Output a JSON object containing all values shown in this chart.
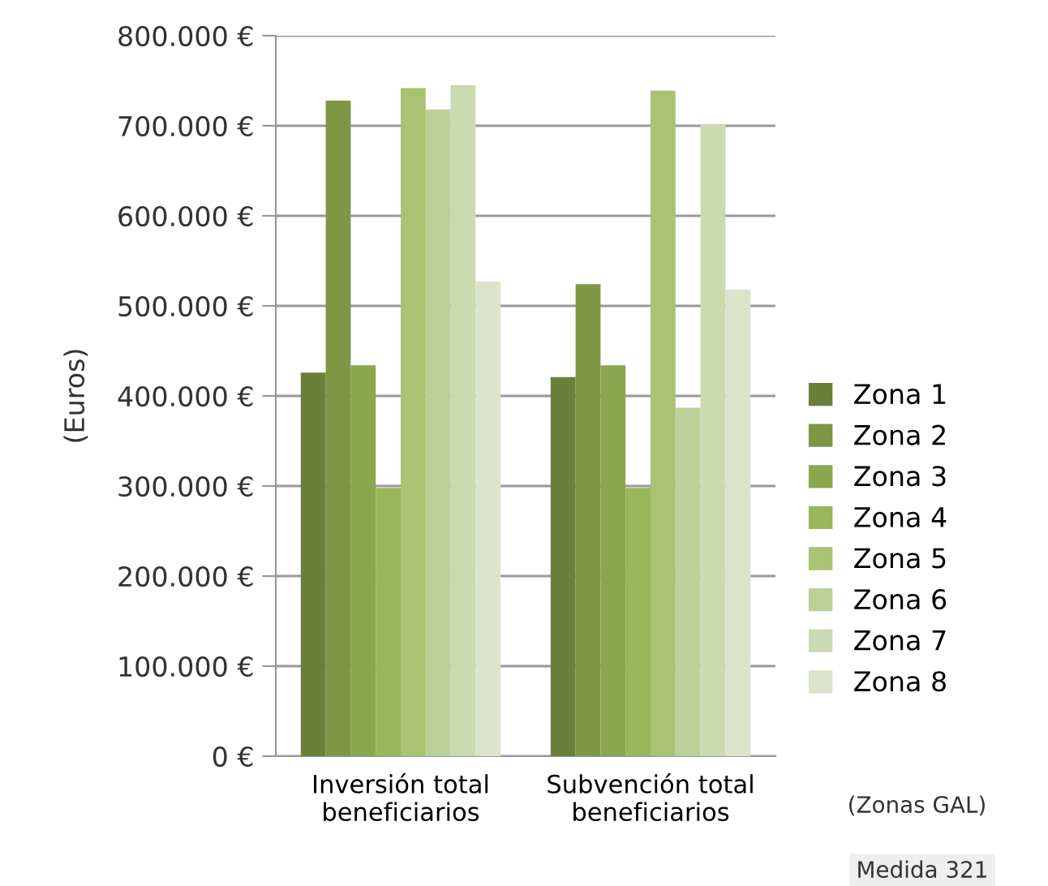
{
  "chart_data": {
    "type": "bar",
    "ylabel": "(Euros)",
    "categories": [
      "Inversión total\nbeneficiarios",
      "Subvención total\nbeneficiarios"
    ],
    "series": [
      {
        "name": "Zona 1",
        "color": "#6b7f3a",
        "values": [
          426000,
          421000
        ]
      },
      {
        "name": "Zona 2",
        "color": "#7f9645",
        "values": [
          728000,
          524000
        ]
      },
      {
        "name": "Zona 3",
        "color": "#8aa64f",
        "values": [
          434000,
          434000
        ]
      },
      {
        "name": "Zona 4",
        "color": "#98b65a",
        "values": [
          298000,
          298000
        ]
      },
      {
        "name": "Zona 5",
        "color": "#a9c373",
        "values": [
          742000,
          739000
        ]
      },
      {
        "name": "Zona 6",
        "color": "#bcd09a",
        "values": [
          718000,
          387000
        ]
      },
      {
        "name": "Zona 7",
        "color": "#ccdab2",
        "values": [
          745000,
          701000
        ]
      },
      {
        "name": "Zona 8",
        "color": "#dbe4ca",
        "values": [
          527000,
          518000
        ]
      }
    ],
    "ylim": [
      0,
      800000
    ],
    "yticks": [
      {
        "value": 0,
        "label": "0 €"
      },
      {
        "value": 100000,
        "label": "100.000 €"
      },
      {
        "value": 200000,
        "label": "200.000 €"
      },
      {
        "value": 300000,
        "label": "300.000 €"
      },
      {
        "value": 400000,
        "label": "400.000 €"
      },
      {
        "value": 500000,
        "label": "500.000 €"
      },
      {
        "value": 600000,
        "label": "600.000 €"
      },
      {
        "value": 700000,
        "label": "700.000 €"
      },
      {
        "value": 800000,
        "label": "800.000 €"
      }
    ],
    "grid": "y",
    "legend": "right",
    "annotations": [
      "(Zonas GAL)",
      "Medida 321"
    ]
  }
}
